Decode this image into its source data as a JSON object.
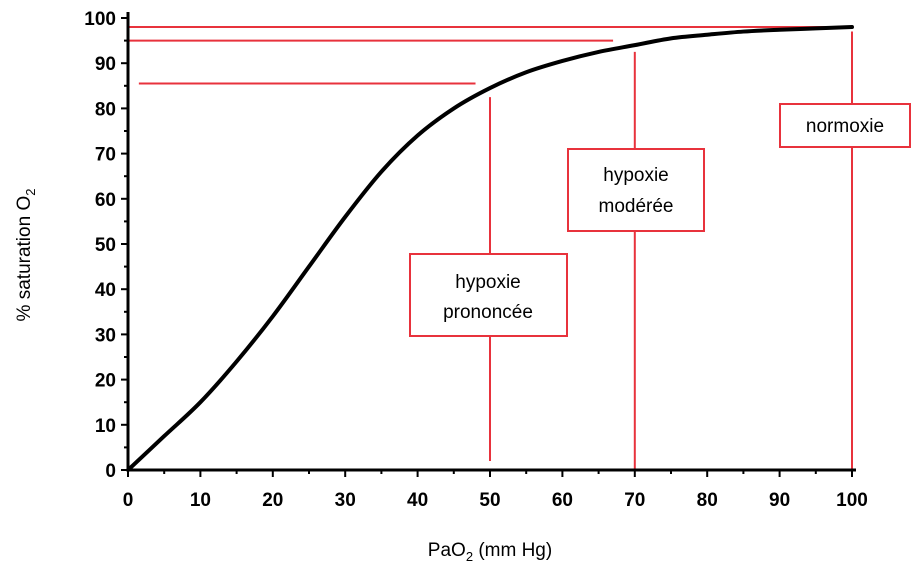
{
  "chart_data": {
    "type": "line",
    "xlabel_main": "PaO",
    "xlabel_sub": "2",
    "xlabel_units": " (mm Hg)",
    "ylabel_main": "% saturation O",
    "ylabel_sub": "2",
    "xlim": [
      0,
      100
    ],
    "ylim": [
      0,
      100
    ],
    "xticks": [
      0,
      10,
      20,
      30,
      40,
      50,
      60,
      70,
      80,
      90,
      100
    ],
    "yticks": [
      0,
      10,
      20,
      30,
      40,
      50,
      60,
      70,
      80,
      90,
      100
    ],
    "grid": false,
    "series": [
      {
        "x": [
          0,
          5,
          10,
          15,
          20,
          25,
          30,
          35,
          40,
          45,
          50,
          55,
          60,
          65,
          70,
          75,
          80,
          85,
          90,
          95,
          100
        ],
        "y": [
          0,
          7.5,
          15,
          24,
          34,
          45,
          56,
          66,
          74,
          80,
          84.5,
          88,
          90.5,
          92.5,
          94,
          95.5,
          96.3,
          97,
          97.4,
          97.7,
          98
        ]
      }
    ],
    "reference_lines": {
      "horizontal": [
        {
          "y": 98,
          "x_from": 0,
          "x_to": 100
        },
        {
          "y": 95,
          "x_from": 0,
          "x_to": 67
        },
        {
          "y": 85.5,
          "x_from": 1.5,
          "x_to": 48
        }
      ],
      "vertical": [
        {
          "x": 50,
          "y_from": 2,
          "y_to": 82.5
        },
        {
          "x": 70,
          "y_from": 0,
          "y_to": 92.5
        },
        {
          "x": 100,
          "y_from": 0,
          "y_to": 97
        }
      ]
    },
    "annotations": [
      {
        "lines": [
          "hypoxie",
          "prononcée"
        ]
      },
      {
        "lines": [
          "hypoxie",
          "modérée"
        ]
      },
      {
        "lines": [
          "normoxie"
        ]
      }
    ],
    "colors": {
      "curve": "#000000",
      "annotation": "#e8323c"
    }
  }
}
